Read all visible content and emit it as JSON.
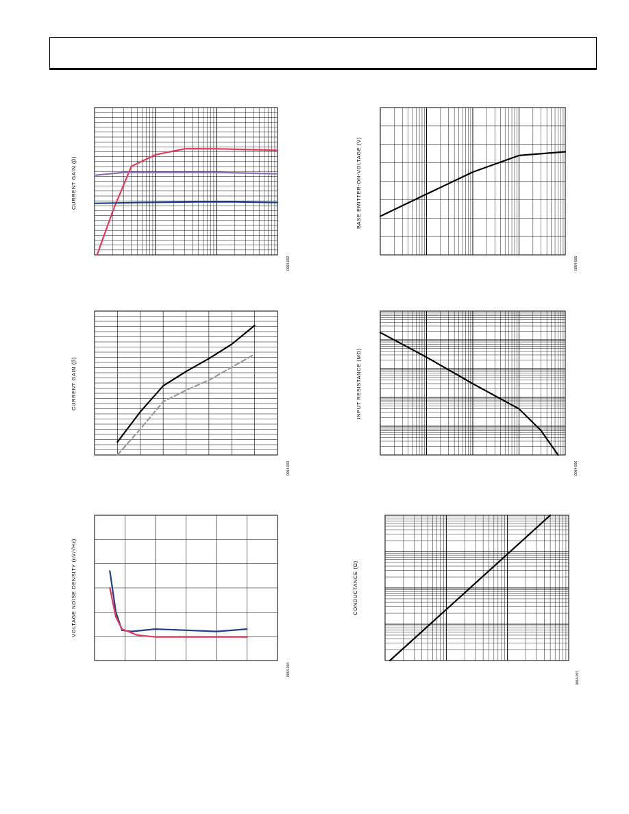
{
  "chart_data": [
    {
      "id": "fig2",
      "type": "line",
      "xscale": "log",
      "xlim": [
        1,
        1000
      ],
      "ylim": [
        0,
        100
      ],
      "ylabel": "CURRENT GAIN (β)",
      "figure_code": "0064-002",
      "grid": true,
      "series": [
        {
          "color": "#e8385a",
          "points": [
            [
              1.1,
              0
            ],
            [
              2,
              30
            ],
            [
              4,
              60
            ],
            [
              5,
              62
            ],
            [
              10,
              68
            ],
            [
              30,
              72
            ],
            [
              100,
              72
            ],
            [
              1000,
              71
            ]
          ]
        },
        {
          "color": "#8a6fb8",
          "points": [
            [
              1,
              54
            ],
            [
              3,
              56
            ],
            [
              5,
              56
            ],
            [
              30,
              56
            ],
            [
              100,
              56
            ],
            [
              1000,
              55
            ]
          ]
        },
        {
          "color": "#1f3f8a",
          "points": [
            [
              1,
              35
            ],
            [
              5,
              35.5
            ],
            [
              50,
              36
            ],
            [
              200,
              36
            ],
            [
              1000,
              35.5
            ]
          ]
        }
      ]
    },
    {
      "id": "fig3",
      "type": "line",
      "xscale": "linear",
      "xlim": [
        0,
        8
      ],
      "ylim": [
        0,
        100
      ],
      "ylabel": "CURRENT GAIN (β)",
      "figure_code": "0064-003",
      "grid": true,
      "series": [
        {
          "color": "#000000",
          "dash": false,
          "points": [
            [
              1,
              9
            ],
            [
              2,
              30
            ],
            [
              3,
              48
            ],
            [
              4,
              58
            ],
            [
              5,
              67
            ],
            [
              6,
              77
            ],
            [
              7,
              90
            ]
          ]
        },
        {
          "color": "#999999",
          "dash": true,
          "points": [
            [
              1,
              0
            ],
            [
              2,
              18
            ],
            [
              3,
              37
            ],
            [
              4,
              45
            ],
            [
              5,
              52
            ],
            [
              6,
              61
            ],
            [
              7,
              70
            ]
          ]
        }
      ]
    },
    {
      "id": "fig4",
      "type": "line",
      "xscale": "linear",
      "xlim": [
        0,
        6
      ],
      "ylim": [
        0,
        6
      ],
      "ylabel": "VOLTAGE NOISE DENSITY (nV/√Hz)",
      "figure_code": "0064-004",
      "grid": true,
      "series": [
        {
          "color": "#1f3f8a",
          "points": [
            [
              0.5,
              3.7
            ],
            [
              0.7,
              2.0
            ],
            [
              0.9,
              1.25
            ],
            [
              1.2,
              1.2
            ],
            [
              2,
              1.3
            ],
            [
              3,
              1.25
            ],
            [
              4,
              1.2
            ],
            [
              5,
              1.3
            ]
          ]
        },
        {
          "color": "#e8385a",
          "points": [
            [
              0.5,
              3.0
            ],
            [
              0.7,
              1.8
            ],
            [
              0.9,
              1.3
            ],
            [
              1.4,
              1.05
            ],
            [
              2,
              0.97
            ],
            [
              3,
              0.97
            ],
            [
              4,
              0.97
            ],
            [
              5,
              0.97
            ]
          ]
        }
      ]
    },
    {
      "id": "fig5",
      "type": "line",
      "xscale": "log",
      "xlim": [
        0.001,
        10
      ],
      "ylim": [
        0,
        8
      ],
      "ylabel": "BASE EMITTER-ON-VOLTAGE (V)",
      "figure_code": "0064-005",
      "grid": true,
      "series": [
        {
          "color": "#000000",
          "points": [
            [
              0.001,
              2.1
            ],
            [
              0.01,
              3.3
            ],
            [
              0.1,
              4.5
            ],
            [
              1,
              5.4
            ],
            [
              10,
              5.6
            ]
          ]
        }
      ]
    },
    {
      "id": "fig6",
      "type": "line",
      "xscale": "log",
      "xlim": [
        0.001,
        10
      ],
      "yscale": "log",
      "ylim": [
        1,
        100000
      ],
      "ylabel": "INPUT RESISTANCE (MΩ)",
      "figure_code": "0064-006",
      "grid": true,
      "series": [
        {
          "color": "#000000",
          "points": [
            [
              0.001,
              18000
            ],
            [
              0.01,
              2500
            ],
            [
              0.1,
              300
            ],
            [
              1,
              40
            ],
            [
              3,
              7
            ],
            [
              7,
              1
            ]
          ]
        }
      ]
    },
    {
      "id": "fig7",
      "type": "line",
      "xscale": "log",
      "xlim": [
        0.001,
        1
      ],
      "yscale": "log",
      "ylim": [
        0.0001,
        1
      ],
      "ylabel": "CONDUCTANCE (Ω)",
      "figure_code": "0064-007",
      "grid": true,
      "series": [
        {
          "color": "#000000",
          "points": [
            [
              0.0012,
              0.0001
            ],
            [
              0.5,
              1
            ]
          ]
        }
      ]
    }
  ]
}
